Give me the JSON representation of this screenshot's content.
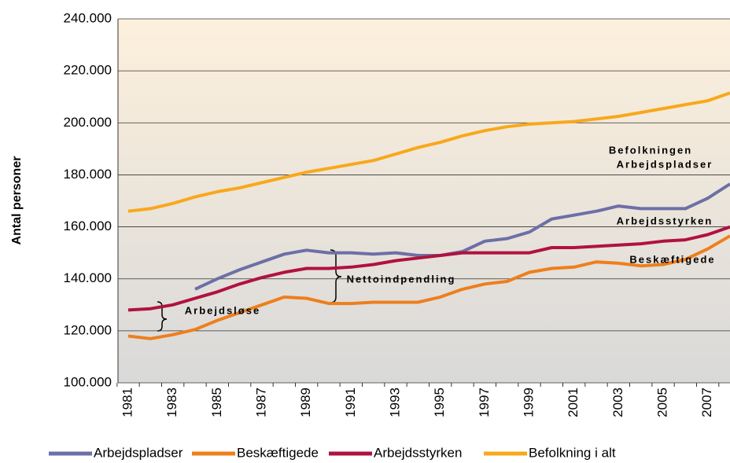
{
  "chart_data": {
    "type": "line",
    "y_label": "Antal personer",
    "categories": [
      "1981",
      null,
      "1983",
      null,
      "1985",
      null,
      "1987",
      null,
      "1989",
      null,
      "1991",
      null,
      "1993",
      null,
      "1995",
      null,
      "1997",
      null,
      "1999",
      null,
      "2001",
      null,
      "2003",
      null,
      "2005",
      null,
      "2007",
      null
    ],
    "series": [
      {
        "name": "Arbejdspladser",
        "color": "#6d6fa7",
        "values": [
          null,
          null,
          null,
          136000,
          140000,
          143500,
          146500,
          149500,
          151000,
          150000,
          150000,
          149500,
          150000,
          149000,
          149000,
          150500,
          154500,
          155500,
          158000,
          163000,
          164500,
          166000,
          168000,
          167000,
          167000,
          167000,
          171000,
          176500
        ]
      },
      {
        "name": "Beskæftigede",
        "color": "#ee7f1c",
        "values": [
          118000,
          117000,
          118500,
          120500,
          124000,
          127000,
          130000,
          133000,
          132500,
          130500,
          130500,
          131000,
          131000,
          131000,
          133000,
          136000,
          138000,
          139000,
          142500,
          144000,
          144500,
          146500,
          146000,
          145000,
          145500,
          147500,
          151500,
          156500
        ]
      },
      {
        "name": "Arbejdsstyrken",
        "color": "#b0123f",
        "values": [
          128000,
          128500,
          130000,
          132500,
          135000,
          138000,
          140500,
          142500,
          144000,
          144000,
          144500,
          145500,
          147000,
          148000,
          149000,
          150000,
          150000,
          150000,
          150000,
          152000,
          152000,
          152500,
          153000,
          153500,
          154500,
          155000,
          157000,
          160000
        ]
      },
      {
        "name": "Befolkning i alt",
        "color": "#f8a81b",
        "values": [
          166000,
          167000,
          169000,
          171500,
          173500,
          175000,
          177000,
          179000,
          181000,
          182500,
          184000,
          185500,
          188000,
          190500,
          192500,
          195000,
          197000,
          198500,
          199500,
          200000,
          200500,
          201500,
          202500,
          204000,
          205500,
          207000,
          208500,
          211500
        ]
      }
    ],
    "annotations": [
      "Befolkningen",
      "Arbejdspladser",
      "Arbejdsstyrken",
      "Beskæftigede",
      "Nettoindpendling",
      "Arbejdsløse"
    ],
    "ylim": [
      100000,
      240000
    ],
    "yticks": [
      {
        "value": 100000,
        "label": "100.000"
      },
      {
        "value": 120000,
        "label": "120.000"
      },
      {
        "value": 140000,
        "label": "140.000"
      },
      {
        "value": 160000,
        "label": "160.000"
      },
      {
        "value": 180000,
        "label": "180.000"
      },
      {
        "value": 200000,
        "label": "200.000"
      },
      {
        "value": 220000,
        "label": "220.000"
      },
      {
        "value": 240000,
        "label": "240.000"
      }
    ],
    "grid": true,
    "legend": "bottom"
  }
}
